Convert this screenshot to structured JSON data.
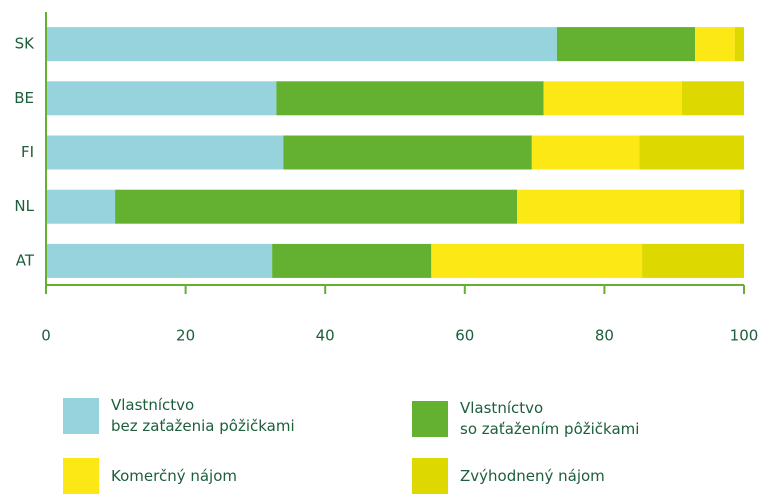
{
  "chart_data": {
    "type": "stacked-bar-horizontal",
    "categories": [
      "SK",
      "BE",
      "FI",
      "NL",
      "AT"
    ],
    "series": [
      {
        "name": "Vlastníctvo\nbez zaťaženia pôžičkami",
        "color": "#96d3dc",
        "values": [
          73.2,
          33.0,
          34.0,
          9.9,
          32.4
        ]
      },
      {
        "name": "Vlastníctvo\nso zaťažením pôžičkami",
        "color": "#64b132",
        "values": [
          19.8,
          38.3,
          35.6,
          57.6,
          22.8
        ]
      },
      {
        "name": "Komerčný nájom",
        "color": "#fbe815",
        "values": [
          5.7,
          19.8,
          15.4,
          31.9,
          30.2
        ]
      },
      {
        "name": "Zvýhodnený nájom",
        "color": "#dcd800",
        "values": [
          1.3,
          8.9,
          15.0,
          0.6,
          14.6
        ]
      }
    ],
    "xlim": [
      0,
      100
    ],
    "xticks": [
      0,
      20,
      40,
      60,
      80,
      100
    ]
  }
}
